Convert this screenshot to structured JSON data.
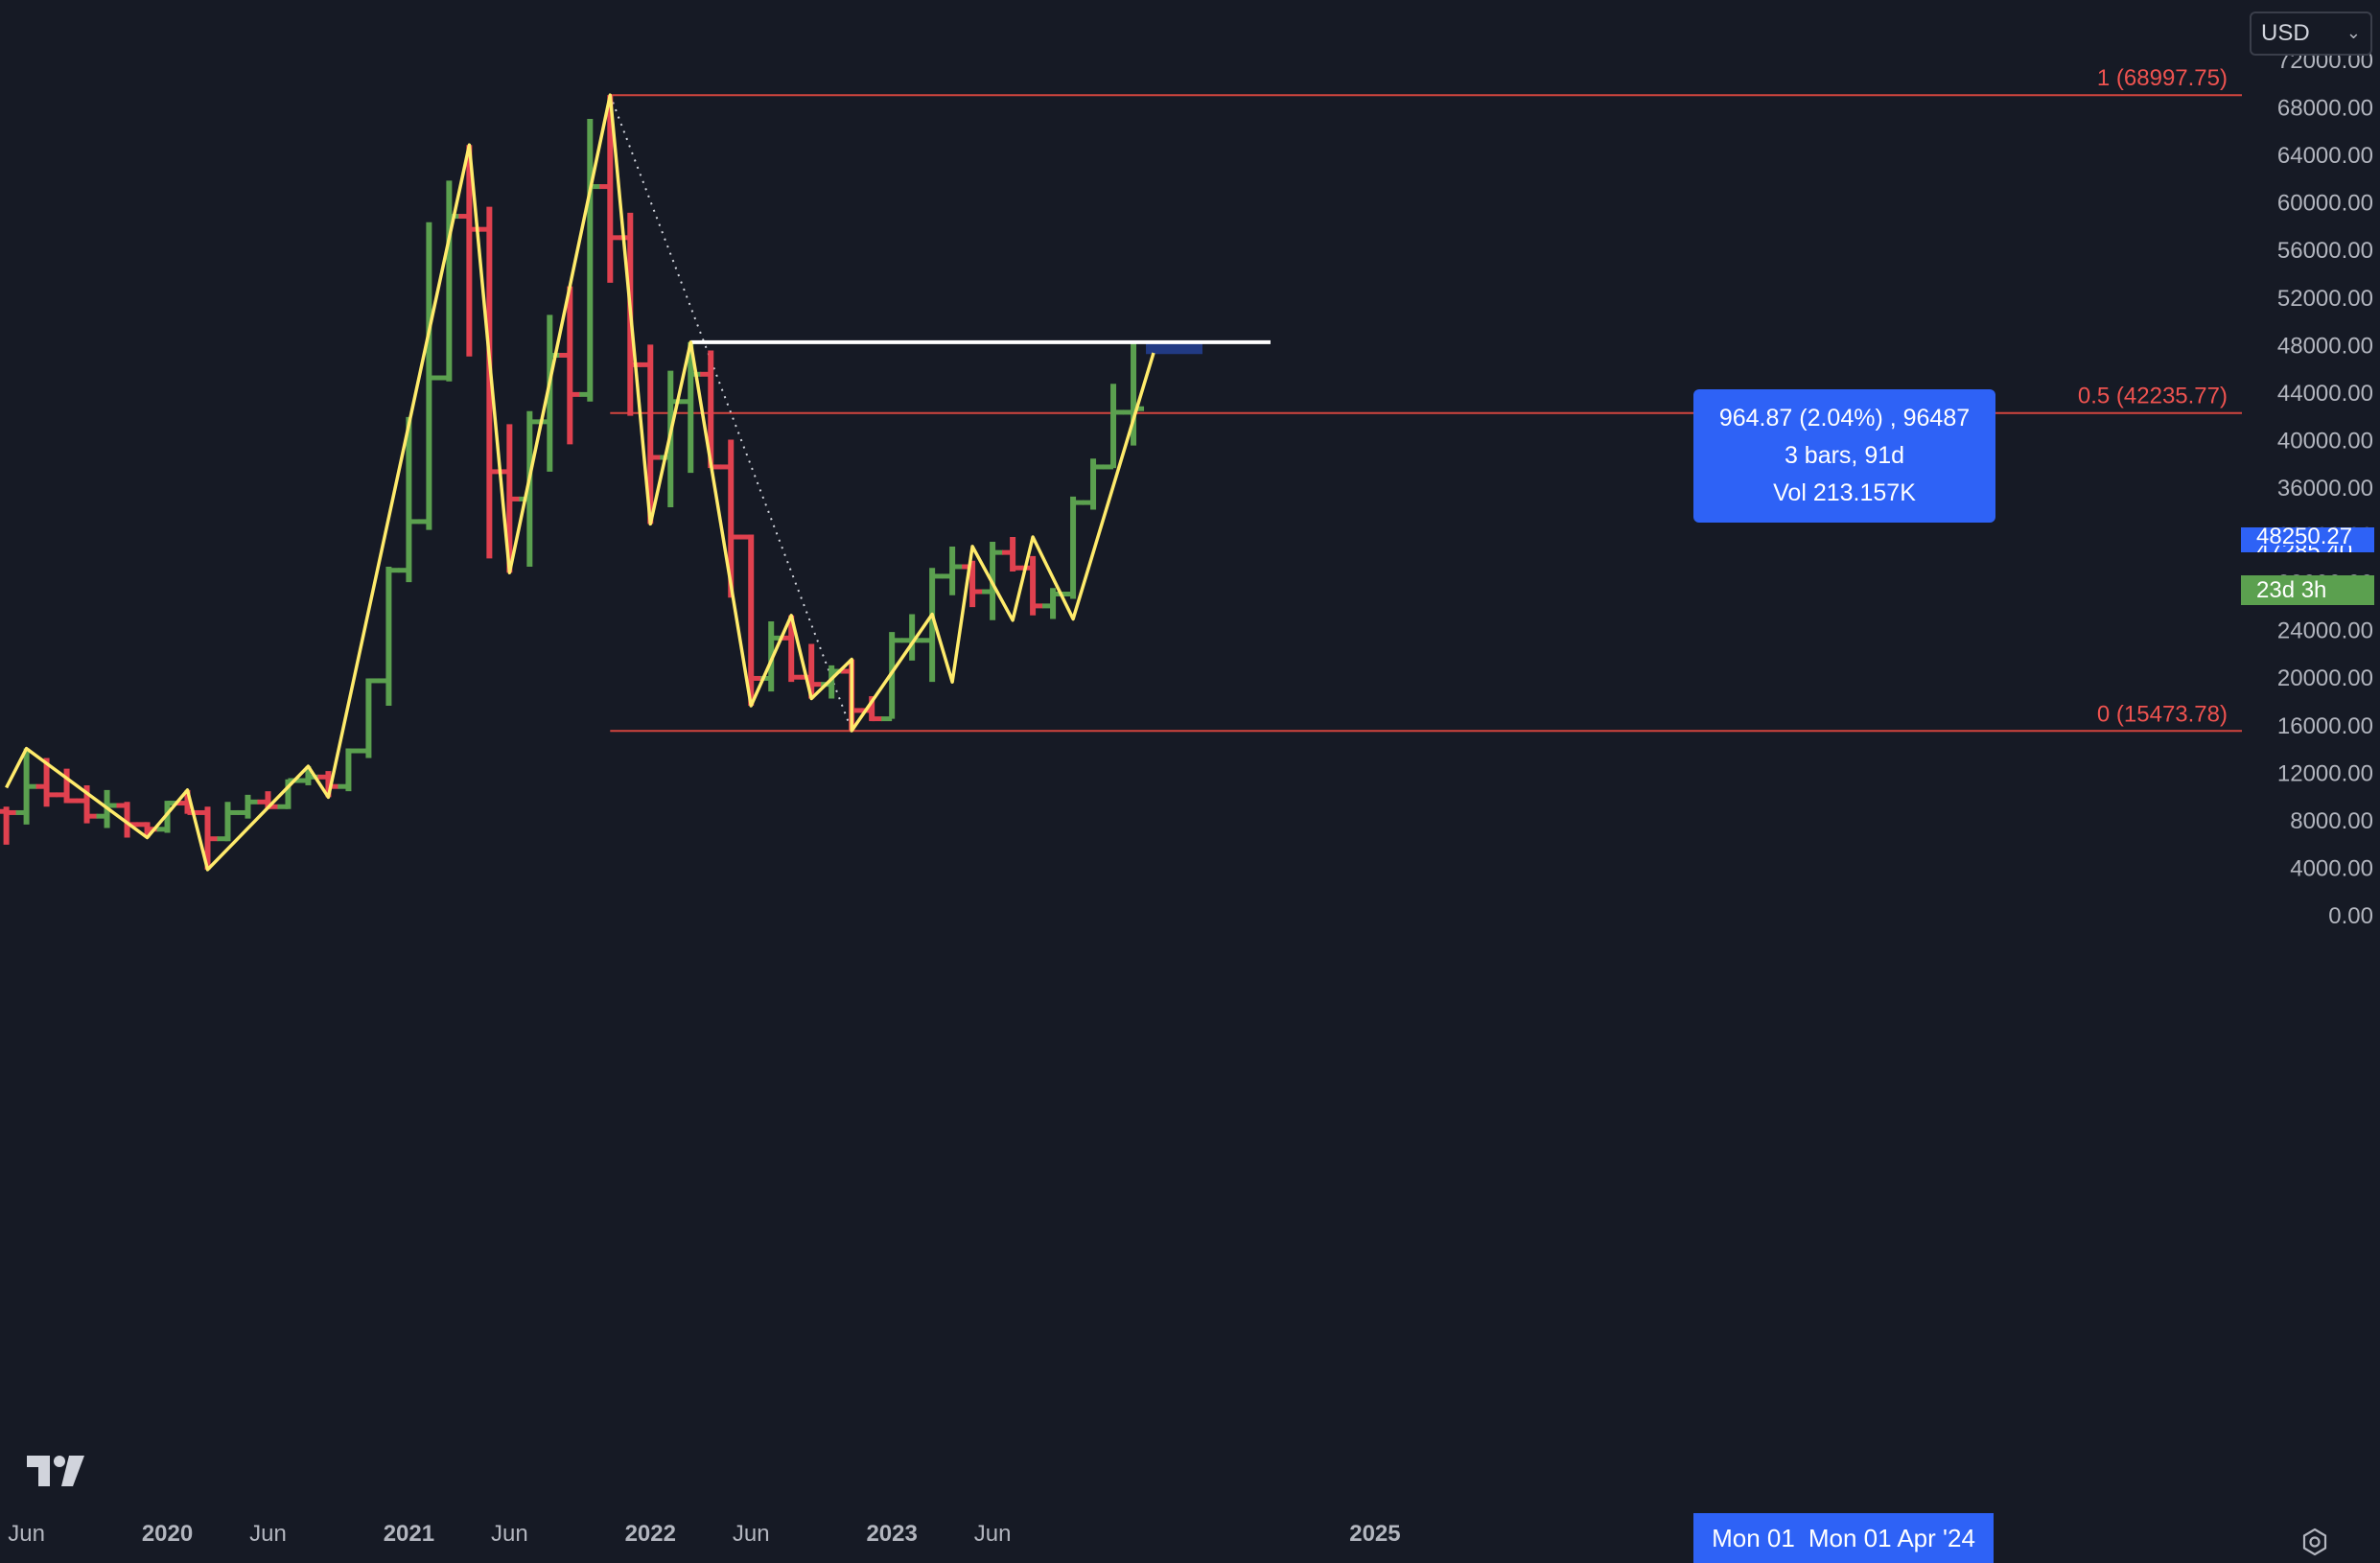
{
  "toolbar": {
    "currency": "USD",
    "currency_options": [
      "USD"
    ],
    "settings_icon": "settings-gear-icon",
    "logo_icon": "tradingview-logo-icon"
  },
  "measure_tooltip": {
    "line1": "964.87 (2.04%) , 96487",
    "line2": "3 bars, 91d",
    "line3": "Vol 213.157K"
  },
  "price_badges": {
    "last_price": "48250.27",
    "measure_price": "47285.40",
    "countdown": "23d 3h"
  },
  "date_badge": {
    "left": "Mon 01",
    "right": "Mon 01 Apr '24"
  },
  "colors": {
    "background": "#161a25",
    "up_bar": "#5ba04f",
    "down_bar": "#e0414f",
    "zigzag": "#ffeb6b",
    "fib_line": "#d2453e",
    "fib_label": "#ef5350",
    "axis_text": "#b2b5be",
    "accent": "#2e62f6"
  },
  "chart_data": {
    "type": "ohlc",
    "title": "",
    "timeframe": "monthly",
    "y_axis": {
      "position": "right",
      "range": [
        -400,
        72600
      ],
      "ticks": [
        "72000.00",
        "68000.00",
        "64000.00",
        "60000.00",
        "56000.00",
        "52000.00",
        "48000.00",
        "44000.00",
        "40000.00",
        "36000.00",
        "32000.00",
        "28000.00",
        "24000.00",
        "20000.00",
        "16000.00",
        "12000.00",
        "8000.00",
        "4000.00",
        "0.00"
      ],
      "tick_values": [
        72000,
        68000,
        64000,
        60000,
        56000,
        52000,
        48000,
        44000,
        40000,
        36000,
        32000,
        28000,
        24000,
        20000,
        16000,
        12000,
        8000,
        4000,
        0
      ]
    },
    "x_axis": {
      "ticks": [
        {
          "label": "Jun",
          "date": "2019-06"
        },
        {
          "label": "2020",
          "date": "2020-01",
          "bold": true
        },
        {
          "label": "Jun",
          "date": "2020-06"
        },
        {
          "label": "2021",
          "date": "2021-01",
          "bold": true
        },
        {
          "label": "Jun",
          "date": "2021-06"
        },
        {
          "label": "2022",
          "date": "2022-01",
          "bold": true
        },
        {
          "label": "Jun",
          "date": "2022-06"
        },
        {
          "label": "2023",
          "date": "2023-01",
          "bold": true
        },
        {
          "label": "Jun",
          "date": "2023-06"
        },
        {
          "label": "2025",
          "date": "2025-01",
          "bold": true
        }
      ]
    },
    "grid": false,
    "bars": [
      {
        "date": "2019-05",
        "open": 8700,
        "high": 9100,
        "low": 5900,
        "close": 8600
      },
      {
        "date": "2019-06",
        "open": 8600,
        "high": 14000,
        "low": 7600,
        "close": 10800
      },
      {
        "date": "2019-07",
        "open": 10800,
        "high": 13200,
        "low": 9100,
        "close": 10100
      },
      {
        "date": "2019-08",
        "open": 10100,
        "high": 12300,
        "low": 9400,
        "close": 9600
      },
      {
        "date": "2019-09",
        "open": 9600,
        "high": 10900,
        "low": 7700,
        "close": 8300
      },
      {
        "date": "2019-10",
        "open": 8300,
        "high": 10500,
        "low": 7300,
        "close": 9200
      },
      {
        "date": "2019-11",
        "open": 9200,
        "high": 9500,
        "low": 6500,
        "close": 7600
      },
      {
        "date": "2019-12",
        "open": 7600,
        "high": 7800,
        "low": 6500,
        "close": 7200
      },
      {
        "date": "2020-01",
        "open": 7200,
        "high": 9600,
        "low": 6900,
        "close": 9400
      },
      {
        "date": "2020-02",
        "open": 9400,
        "high": 10500,
        "low": 8500,
        "close": 8600
      },
      {
        "date": "2020-03",
        "open": 8600,
        "high": 9100,
        "low": 3800,
        "close": 6400
      },
      {
        "date": "2020-04",
        "open": 6400,
        "high": 9500,
        "low": 6200,
        "close": 8600
      },
      {
        "date": "2020-05",
        "open": 8600,
        "high": 10100,
        "low": 8100,
        "close": 9500
      },
      {
        "date": "2020-06",
        "open": 9500,
        "high": 10400,
        "low": 8900,
        "close": 9100
      },
      {
        "date": "2020-07",
        "open": 9100,
        "high": 11400,
        "low": 8900,
        "close": 11300
      },
      {
        "date": "2020-08",
        "open": 11300,
        "high": 12500,
        "low": 10900,
        "close": 11600
      },
      {
        "date": "2020-09",
        "open": 11600,
        "high": 12100,
        "low": 9900,
        "close": 10800
      },
      {
        "date": "2020-10",
        "open": 10800,
        "high": 14000,
        "low": 10400,
        "close": 13800
      },
      {
        "date": "2020-11",
        "open": 13800,
        "high": 19900,
        "low": 13200,
        "close": 19700
      },
      {
        "date": "2020-12",
        "open": 19700,
        "high": 29300,
        "low": 17600,
        "close": 29000
      },
      {
        "date": "2021-01",
        "open": 29000,
        "high": 41900,
        "low": 28000,
        "close": 33100
      },
      {
        "date": "2021-02",
        "open": 33100,
        "high": 58300,
        "low": 32400,
        "close": 45200
      },
      {
        "date": "2021-03",
        "open": 45200,
        "high": 61800,
        "low": 44900,
        "close": 58800
      },
      {
        "date": "2021-04",
        "open": 58800,
        "high": 64800,
        "low": 47000,
        "close": 57700
      },
      {
        "date": "2021-05",
        "open": 57700,
        "high": 59600,
        "low": 30000,
        "close": 37300
      },
      {
        "date": "2021-06",
        "open": 37300,
        "high": 41300,
        "low": 28800,
        "close": 35000
      },
      {
        "date": "2021-07",
        "open": 35000,
        "high": 42400,
        "low": 29300,
        "close": 41500
      },
      {
        "date": "2021-08",
        "open": 41500,
        "high": 50500,
        "low": 37300,
        "close": 47100
      },
      {
        "date": "2021-09",
        "open": 47100,
        "high": 52900,
        "low": 39600,
        "close": 43800
      },
      {
        "date": "2021-10",
        "open": 43800,
        "high": 67000,
        "low": 43200,
        "close": 61300
      },
      {
        "date": "2021-11",
        "open": 61300,
        "high": 69000,
        "low": 53200,
        "close": 57000
      },
      {
        "date": "2021-12",
        "open": 57000,
        "high": 59100,
        "low": 42000,
        "close": 46300
      },
      {
        "date": "2022-01",
        "open": 46300,
        "high": 48000,
        "low": 32900,
        "close": 38500
      },
      {
        "date": "2022-02",
        "open": 38500,
        "high": 45800,
        "low": 34300,
        "close": 43200
      },
      {
        "date": "2022-03",
        "open": 43200,
        "high": 48200,
        "low": 37200,
        "close": 45500
      },
      {
        "date": "2022-04",
        "open": 45500,
        "high": 47500,
        "low": 37600,
        "close": 37700
      },
      {
        "date": "2022-05",
        "open": 37700,
        "high": 40000,
        "low": 26700,
        "close": 31800
      },
      {
        "date": "2022-06",
        "open": 31800,
        "high": 32000,
        "low": 17600,
        "close": 19900
      },
      {
        "date": "2022-07",
        "open": 19900,
        "high": 24700,
        "low": 18800,
        "close": 23300
      },
      {
        "date": "2022-08",
        "open": 23300,
        "high": 25200,
        "low": 19600,
        "close": 20000
      },
      {
        "date": "2022-09",
        "open": 20000,
        "high": 22800,
        "low": 18200,
        "close": 19400
      },
      {
        "date": "2022-10",
        "open": 19400,
        "high": 21000,
        "low": 18200,
        "close": 20500
      },
      {
        "date": "2022-11",
        "open": 20500,
        "high": 21500,
        "low": 15500,
        "close": 17200
      },
      {
        "date": "2022-12",
        "open": 17200,
        "high": 18400,
        "low": 16300,
        "close": 16500
      },
      {
        "date": "2023-01",
        "open": 16500,
        "high": 23800,
        "low": 16500,
        "close": 23100
      },
      {
        "date": "2023-02",
        "open": 23100,
        "high": 25300,
        "low": 21400,
        "close": 23100
      },
      {
        "date": "2023-03",
        "open": 23100,
        "high": 29200,
        "low": 19600,
        "close": 28500
      },
      {
        "date": "2023-04",
        "open": 28500,
        "high": 31000,
        "low": 26900,
        "close": 29300
      },
      {
        "date": "2023-05",
        "open": 29300,
        "high": 29800,
        "low": 25900,
        "close": 27200
      },
      {
        "date": "2023-06",
        "open": 27200,
        "high": 31400,
        "low": 24800,
        "close": 30500
      },
      {
        "date": "2023-07",
        "open": 30500,
        "high": 31800,
        "low": 28900,
        "close": 29200
      },
      {
        "date": "2023-08",
        "open": 29200,
        "high": 30200,
        "low": 25200,
        "close": 26000
      },
      {
        "date": "2023-09",
        "open": 26000,
        "high": 27500,
        "low": 24900,
        "close": 27000
      },
      {
        "date": "2023-10",
        "open": 27000,
        "high": 35200,
        "low": 26600,
        "close": 34700
      },
      {
        "date": "2023-11",
        "open": 34700,
        "high": 38400,
        "low": 34100,
        "close": 37700
      },
      {
        "date": "2023-12",
        "open": 37700,
        "high": 44700,
        "low": 37600,
        "close": 42300
      },
      {
        "date": "2024-01",
        "open": 42300,
        "high": 48100,
        "low": 39500,
        "close": 42600
      }
    ],
    "zigzag": [
      {
        "date": "2019-05",
        "price": 10700
      },
      {
        "date": "2019-06",
        "price": 14000
      },
      {
        "date": "2019-12",
        "price": 6500
      },
      {
        "date": "2020-02",
        "price": 10500
      },
      {
        "date": "2020-03",
        "price": 3800
      },
      {
        "date": "2020-08",
        "price": 12500
      },
      {
        "date": "2020-09",
        "price": 9900
      },
      {
        "date": "2021-04",
        "price": 64800
      },
      {
        "date": "2021-06",
        "price": 28800
      },
      {
        "date": "2021-11",
        "price": 69000
      },
      {
        "date": "2022-01",
        "price": 32900
      },
      {
        "date": "2022-03",
        "price": 48200
      },
      {
        "date": "2022-06",
        "price": 17600
      },
      {
        "date": "2022-08",
        "price": 25200
      },
      {
        "date": "2022-09",
        "price": 18200
      },
      {
        "date": "2022-11",
        "price": 21500
      },
      {
        "date": "2022-11",
        "price": 15500
      },
      {
        "date": "2023-03",
        "price": 25300
      },
      {
        "date": "2023-04",
        "price": 19600
      },
      {
        "date": "2023-05",
        "price": 31000
      },
      {
        "date": "2023-07",
        "price": 24800
      },
      {
        "date": "2023-08",
        "price": 31800
      },
      {
        "date": "2023-10",
        "price": 24900
      },
      {
        "date": "2024-02",
        "price": 47300
      }
    ],
    "fib_levels": [
      {
        "label": "1 (68997.75)",
        "value": 68997.75
      },
      {
        "label": "0.5 (42235.77)",
        "value": 42235.77
      },
      {
        "label": "0 (15473.78)",
        "value": 15473.78
      }
    ],
    "fib_range_start": "2021-11",
    "fib_trend_line": {
      "from": {
        "date": "2021-11",
        "price": 69000
      },
      "to": {
        "date": "2022-11",
        "price": 15500
      }
    },
    "measure_line": {
      "from": "2022-03",
      "to": "2024-07",
      "price": 48200
    },
    "measure_region": {
      "from": "2024-02",
      "to": "2024-05",
      "price_low": 47200,
      "price_high": 48250
    },
    "last_price": 48250.27,
    "measure_price": 47285.4
  }
}
